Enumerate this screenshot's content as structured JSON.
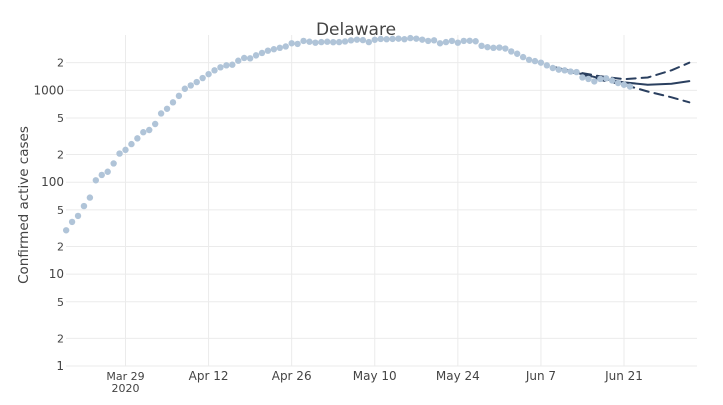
{
  "chart_data": {
    "type": "scatter",
    "title": "Delaware",
    "xlabel": "",
    "ylabel": "Confirmed active cases",
    "y_scale": "log",
    "ylim": [
      1,
      4000
    ],
    "xlim": [
      "2020-03-22",
      "2020-07-02"
    ],
    "grid": true,
    "legend": "none",
    "colors": {
      "observed": "#b0c4d8",
      "forecast": "#2a3f5f",
      "grid": "#ebebeb",
      "text": "#444444"
    },
    "y_major_ticks": [
      {
        "value": 1,
        "label": "1"
      },
      {
        "value": 10,
        "label": "10"
      },
      {
        "value": 100,
        "label": "100"
      },
      {
        "value": 1000,
        "label": "1000"
      }
    ],
    "y_minor_ticks": [
      {
        "value": 2,
        "label": "2"
      },
      {
        "value": 5,
        "label": "5"
      },
      {
        "value": 20,
        "label": "2"
      },
      {
        "value": 50,
        "label": "5"
      },
      {
        "value": 200,
        "label": "2"
      },
      {
        "value": 500,
        "label": "5"
      },
      {
        "value": 2000,
        "label": "2"
      }
    ],
    "x_ticks": [
      {
        "date": "2020-03-29",
        "label": "Mar 29",
        "sublabel": "2020"
      },
      {
        "date": "2020-04-12",
        "label": "Apr 12"
      },
      {
        "date": "2020-04-26",
        "label": "Apr 26"
      },
      {
        "date": "2020-05-10",
        "label": "May 10"
      },
      {
        "date": "2020-05-24",
        "label": "May 24"
      },
      {
        "date": "2020-06-07",
        "label": "Jun 7"
      },
      {
        "date": "2020-06-21",
        "label": "Jun 21"
      }
    ],
    "series": [
      {
        "kind": "observed",
        "points": [
          {
            "x": "2020-03-19",
            "y": 30
          },
          {
            "x": "2020-03-20",
            "y": 37
          },
          {
            "x": "2020-03-21",
            "y": 43
          },
          {
            "x": "2020-03-22",
            "y": 55
          },
          {
            "x": "2020-03-23",
            "y": 68
          },
          {
            "x": "2020-03-24",
            "y": 105
          },
          {
            "x": "2020-03-25",
            "y": 120
          },
          {
            "x": "2020-03-26",
            "y": 130
          },
          {
            "x": "2020-03-27",
            "y": 160
          },
          {
            "x": "2020-03-28",
            "y": 205
          },
          {
            "x": "2020-03-29",
            "y": 225
          },
          {
            "x": "2020-03-30",
            "y": 260
          },
          {
            "x": "2020-03-31",
            "y": 300
          },
          {
            "x": "2020-04-01",
            "y": 350
          },
          {
            "x": "2020-04-02",
            "y": 370
          },
          {
            "x": "2020-04-03",
            "y": 430
          },
          {
            "x": "2020-04-04",
            "y": 560
          },
          {
            "x": "2020-04-05",
            "y": 630
          },
          {
            "x": "2020-04-06",
            "y": 740
          },
          {
            "x": "2020-04-07",
            "y": 870
          },
          {
            "x": "2020-04-08",
            "y": 1040
          },
          {
            "x": "2020-04-09",
            "y": 1130
          },
          {
            "x": "2020-04-10",
            "y": 1230
          },
          {
            "x": "2020-04-11",
            "y": 1360
          },
          {
            "x": "2020-04-12",
            "y": 1500
          },
          {
            "x": "2020-04-13",
            "y": 1650
          },
          {
            "x": "2020-04-14",
            "y": 1780
          },
          {
            "x": "2020-04-15",
            "y": 1870
          },
          {
            "x": "2020-04-16",
            "y": 1900
          },
          {
            "x": "2020-04-17",
            "y": 2100
          },
          {
            "x": "2020-04-18",
            "y": 2250
          },
          {
            "x": "2020-04-19",
            "y": 2230
          },
          {
            "x": "2020-04-20",
            "y": 2400
          },
          {
            "x": "2020-04-21",
            "y": 2550
          },
          {
            "x": "2020-04-22",
            "y": 2700
          },
          {
            "x": "2020-04-23",
            "y": 2800
          },
          {
            "x": "2020-04-24",
            "y": 2900
          },
          {
            "x": "2020-04-25",
            "y": 3000
          },
          {
            "x": "2020-04-26",
            "y": 3250
          },
          {
            "x": "2020-04-27",
            "y": 3200
          },
          {
            "x": "2020-04-28",
            "y": 3450
          },
          {
            "x": "2020-04-29",
            "y": 3380
          },
          {
            "x": "2020-04-30",
            "y": 3300
          },
          {
            "x": "2020-05-01",
            "y": 3350
          },
          {
            "x": "2020-05-02",
            "y": 3380
          },
          {
            "x": "2020-05-03",
            "y": 3340
          },
          {
            "x": "2020-05-04",
            "y": 3350
          },
          {
            "x": "2020-05-05",
            "y": 3400
          },
          {
            "x": "2020-05-06",
            "y": 3500
          },
          {
            "x": "2020-05-07",
            "y": 3560
          },
          {
            "x": "2020-05-08",
            "y": 3520
          },
          {
            "x": "2020-05-09",
            "y": 3350
          },
          {
            "x": "2020-05-10",
            "y": 3550
          },
          {
            "x": "2020-05-11",
            "y": 3620
          },
          {
            "x": "2020-05-12",
            "y": 3600
          },
          {
            "x": "2020-05-13",
            "y": 3630
          },
          {
            "x": "2020-05-14",
            "y": 3650
          },
          {
            "x": "2020-05-15",
            "y": 3600
          },
          {
            "x": "2020-05-16",
            "y": 3700
          },
          {
            "x": "2020-05-17",
            "y": 3650
          },
          {
            "x": "2020-05-18",
            "y": 3560
          },
          {
            "x": "2020-05-19",
            "y": 3450
          },
          {
            "x": "2020-05-20",
            "y": 3500
          },
          {
            "x": "2020-05-21",
            "y": 3250
          },
          {
            "x": "2020-05-22",
            "y": 3350
          },
          {
            "x": "2020-05-23",
            "y": 3450
          },
          {
            "x": "2020-05-24",
            "y": 3300
          },
          {
            "x": "2020-05-25",
            "y": 3450
          },
          {
            "x": "2020-05-26",
            "y": 3460
          },
          {
            "x": "2020-05-27",
            "y": 3420
          },
          {
            "x": "2020-05-28",
            "y": 3050
          },
          {
            "x": "2020-05-29",
            "y": 2950
          },
          {
            "x": "2020-05-30",
            "y": 2900
          },
          {
            "x": "2020-05-31",
            "y": 2920
          },
          {
            "x": "2020-06-01",
            "y": 2850
          },
          {
            "x": "2020-06-02",
            "y": 2650
          },
          {
            "x": "2020-06-03",
            "y": 2500
          },
          {
            "x": "2020-06-04",
            "y": 2300
          },
          {
            "x": "2020-06-05",
            "y": 2150
          },
          {
            "x": "2020-06-06",
            "y": 2080
          },
          {
            "x": "2020-06-07",
            "y": 2000
          },
          {
            "x": "2020-06-08",
            "y": 1870
          },
          {
            "x": "2020-06-09",
            "y": 1750
          },
          {
            "x": "2020-06-10",
            "y": 1680
          },
          {
            "x": "2020-06-11",
            "y": 1650
          },
          {
            "x": "2020-06-12",
            "y": 1600
          },
          {
            "x": "2020-06-13",
            "y": 1580
          },
          {
            "x": "2020-06-14",
            "y": 1380
          },
          {
            "x": "2020-06-15",
            "y": 1330
          },
          {
            "x": "2020-06-16",
            "y": 1250
          },
          {
            "x": "2020-06-17",
            "y": 1330
          },
          {
            "x": "2020-06-18",
            "y": 1350
          },
          {
            "x": "2020-06-19",
            "y": 1280
          },
          {
            "x": "2020-06-20",
            "y": 1200
          },
          {
            "x": "2020-06-21",
            "y": 1150
          },
          {
            "x": "2020-06-22",
            "y": 1100
          }
        ]
      },
      {
        "kind": "forecast",
        "style": "solid",
        "points": [
          {
            "x": "2020-06-09",
            "y": 1800
          },
          {
            "x": "2020-06-13",
            "y": 1550
          },
          {
            "x": "2020-06-17",
            "y": 1350
          },
          {
            "x": "2020-06-21",
            "y": 1220
          },
          {
            "x": "2020-06-25",
            "y": 1150
          },
          {
            "x": "2020-06-29",
            "y": 1180
          },
          {
            "x": "2020-07-02",
            "y": 1260
          }
        ]
      },
      {
        "kind": "forecast_upper",
        "style": "dashed",
        "points": [
          {
            "x": "2020-06-09",
            "y": 1800
          },
          {
            "x": "2020-06-13",
            "y": 1580
          },
          {
            "x": "2020-06-17",
            "y": 1420
          },
          {
            "x": "2020-06-21",
            "y": 1320
          },
          {
            "x": "2020-06-25",
            "y": 1380
          },
          {
            "x": "2020-06-29",
            "y": 1650
          },
          {
            "x": "2020-07-02",
            "y": 2000
          }
        ]
      },
      {
        "kind": "forecast_lower",
        "style": "dashed",
        "points": [
          {
            "x": "2020-06-09",
            "y": 1800
          },
          {
            "x": "2020-06-13",
            "y": 1520
          },
          {
            "x": "2020-06-17",
            "y": 1300
          },
          {
            "x": "2020-06-21",
            "y": 1150
          },
          {
            "x": "2020-06-25",
            "y": 970
          },
          {
            "x": "2020-06-29",
            "y": 840
          },
          {
            "x": "2020-07-02",
            "y": 740
          }
        ]
      }
    ]
  }
}
